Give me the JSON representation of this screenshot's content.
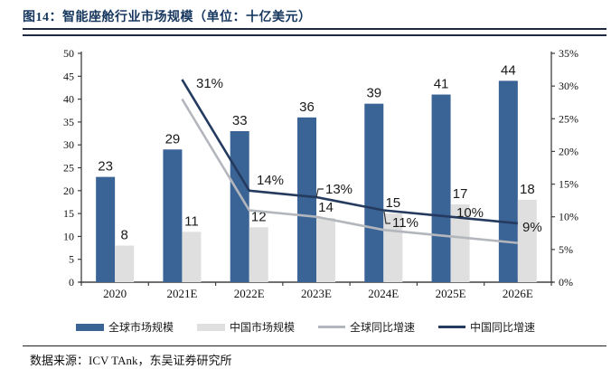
{
  "header": {
    "title": "图14：智能座舱行业市场规模（单位：十亿美元）"
  },
  "footer": {
    "source": "数据来源：ICV TAnk，东吴证券研究所"
  },
  "colors": {
    "title_navy": "#17375E",
    "bar_global": "#3A6496",
    "bar_china": "#DFDFDF",
    "line_global": "#B3B6BC",
    "line_china": "#243A5E",
    "axis": "#404040",
    "label_text": "#1a1a1a"
  },
  "chart_data": {
    "type": "bar",
    "subtype": "bar-line-combo",
    "categories": [
      "2020",
      "2021E",
      "2022E",
      "2023E",
      "2024E",
      "2025E",
      "2026E"
    ],
    "series": [
      {
        "name": "全球市场规模",
        "type": "bar",
        "axis": "left",
        "color": "#3A6496",
        "values": [
          23,
          29,
          33,
          36,
          39,
          41,
          44
        ]
      },
      {
        "name": "中国市场规模",
        "type": "bar",
        "axis": "left",
        "color": "#DFDFDF",
        "values": [
          8,
          11,
          12,
          14,
          15,
          17,
          18
        ]
      },
      {
        "name": "全球同比增速",
        "type": "line",
        "axis": "right",
        "color": "#B3B6BC",
        "values": [
          null,
          28,
          11,
          10,
          8,
          7,
          6
        ],
        "labels": [
          "",
          "",
          "",
          "",
          "",
          "",
          ""
        ]
      },
      {
        "name": "中国同比增速",
        "type": "line",
        "axis": "right",
        "color": "#243A5E",
        "values": [
          null,
          31,
          14,
          13,
          11,
          10,
          9
        ],
        "labels": [
          "",
          "31%",
          "14%",
          "13%",
          "11%",
          "10%",
          "9%"
        ]
      }
    ],
    "left_axis": {
      "min": 0,
      "max": 50,
      "step": 5,
      "tick_labels": [
        "0",
        "5",
        "10",
        "15",
        "20",
        "25",
        "30",
        "35",
        "40",
        "45",
        "50"
      ]
    },
    "right_axis": {
      "min": 0,
      "max": 35,
      "step": 5,
      "tick_labels": [
        "0%",
        "5%",
        "10%",
        "15%",
        "20%",
        "25%",
        "30%",
        "35%"
      ]
    },
    "grid": false,
    "legend_position": "bottom",
    "title": "智能座舱行业市场规模",
    "unit": "十亿美元"
  }
}
